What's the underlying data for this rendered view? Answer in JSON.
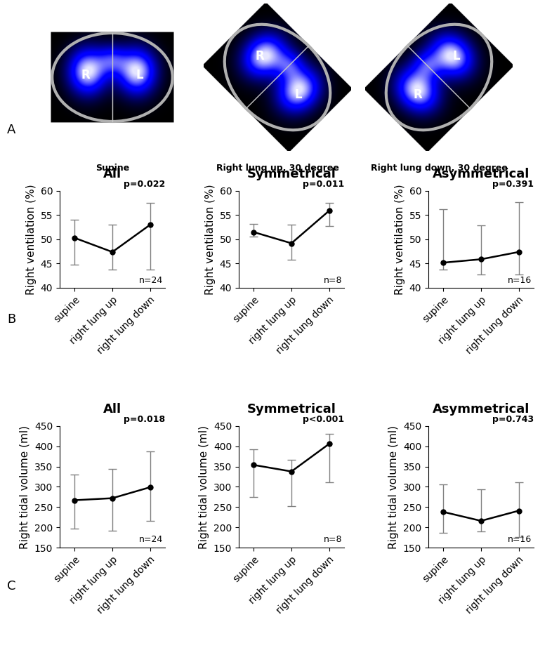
{
  "panel_labels": [
    "A",
    "B",
    "C"
  ],
  "images": [
    {
      "caption": "Supine",
      "labels": [
        "R",
        "L"
      ]
    },
    {
      "caption": "Right lung up, 30 degree",
      "labels": [
        "R",
        "L"
      ]
    },
    {
      "caption": "Right lung down, 30 degree",
      "labels": [
        "R",
        "L"
      ]
    }
  ],
  "chart_data": [
    {
      "type": "line",
      "title": "All",
      "y_label": "Right ventilation (%)",
      "categories": [
        "supine",
        "right lung up",
        "right lung down"
      ],
      "values": [
        50.3,
        47.4,
        53.0
      ],
      "lower": [
        44.8,
        43.8,
        43.8
      ],
      "upper": [
        54.1,
        53.1,
        57.6
      ],
      "ylim": [
        40,
        60
      ],
      "yticks": [
        40,
        45,
        50,
        55,
        60
      ],
      "color": "#000000",
      "marker": "circle",
      "line_style": "solid",
      "annotations": [
        "p=0.022",
        "n=24"
      ]
    },
    {
      "type": "line",
      "title": "Symmetrical",
      "y_label": "Right ventilation (%)",
      "categories": [
        "supine",
        "right lung up",
        "right lung down"
      ],
      "values": [
        51.5,
        49.2,
        55.9
      ],
      "lower": [
        50.6,
        45.8,
        52.7
      ],
      "upper": [
        53.2,
        53.1,
        57.6
      ],
      "ylim": [
        40,
        60
      ],
      "yticks": [
        40,
        45,
        50,
        55,
        60
      ],
      "color": "#000000",
      "marker": "circle",
      "line_style": "solid",
      "annotations": [
        "p=0.011",
        "n=8"
      ]
    },
    {
      "type": "line",
      "title": "Asymmetrical",
      "y_label": "Right ventilation (%)",
      "categories": [
        "supine",
        "right lung up",
        "right lung down"
      ],
      "values": [
        45.2,
        45.9,
        47.4
      ],
      "lower": [
        43.7,
        42.8,
        42.8
      ],
      "upper": [
        56.3,
        52.9,
        57.7
      ],
      "ylim": [
        40,
        60
      ],
      "yticks": [
        40,
        45,
        50,
        55,
        60
      ],
      "color": "#000000",
      "marker": "circle",
      "line_style": "solid",
      "annotations": [
        "p=0.391",
        "n=16"
      ]
    },
    {
      "type": "line",
      "title": "All",
      "y_label": "Right tidal volume (ml)",
      "categories": [
        "supine",
        "right lung up",
        "right lung down"
      ],
      "values": [
        267,
        272,
        299
      ],
      "lower": [
        197,
        192,
        216
      ],
      "upper": [
        331,
        344,
        388
      ],
      "ylim": [
        150,
        450
      ],
      "yticks": [
        150,
        200,
        250,
        300,
        350,
        400,
        450
      ],
      "color": "#000000",
      "marker": "circle",
      "line_style": "solid",
      "annotations": [
        "p=0.018",
        "n=24"
      ]
    },
    {
      "type": "line",
      "title": "Symmetrical",
      "y_label": "Right tidal volume (ml)",
      "categories": [
        "supine",
        "right lung up",
        "right lung down"
      ],
      "values": [
        354,
        338,
        406
      ],
      "lower": [
        274,
        252,
        312
      ],
      "upper": [
        392,
        366,
        431
      ],
      "ylim": [
        150,
        450
      ],
      "yticks": [
        150,
        200,
        250,
        300,
        350,
        400,
        450
      ],
      "color": "#000000",
      "marker": "circle",
      "line_style": "solid",
      "annotations": [
        "p<0.001",
        "n=8"
      ]
    },
    {
      "type": "line",
      "title": "Asymmetrical",
      "y_label": "Right tidal volume (ml)",
      "categories": [
        "supine",
        "right lung up",
        "right lung down"
      ],
      "values": [
        238,
        216,
        241
      ],
      "lower": [
        186,
        190,
        176
      ],
      "upper": [
        306,
        294,
        311
      ],
      "ylim": [
        150,
        450
      ],
      "yticks": [
        150,
        200,
        250,
        300,
        350,
        400,
        450
      ],
      "color": "#000000",
      "marker": "circle",
      "line_style": "solid",
      "annotations": [
        "p=0.743",
        "n=16"
      ]
    }
  ]
}
